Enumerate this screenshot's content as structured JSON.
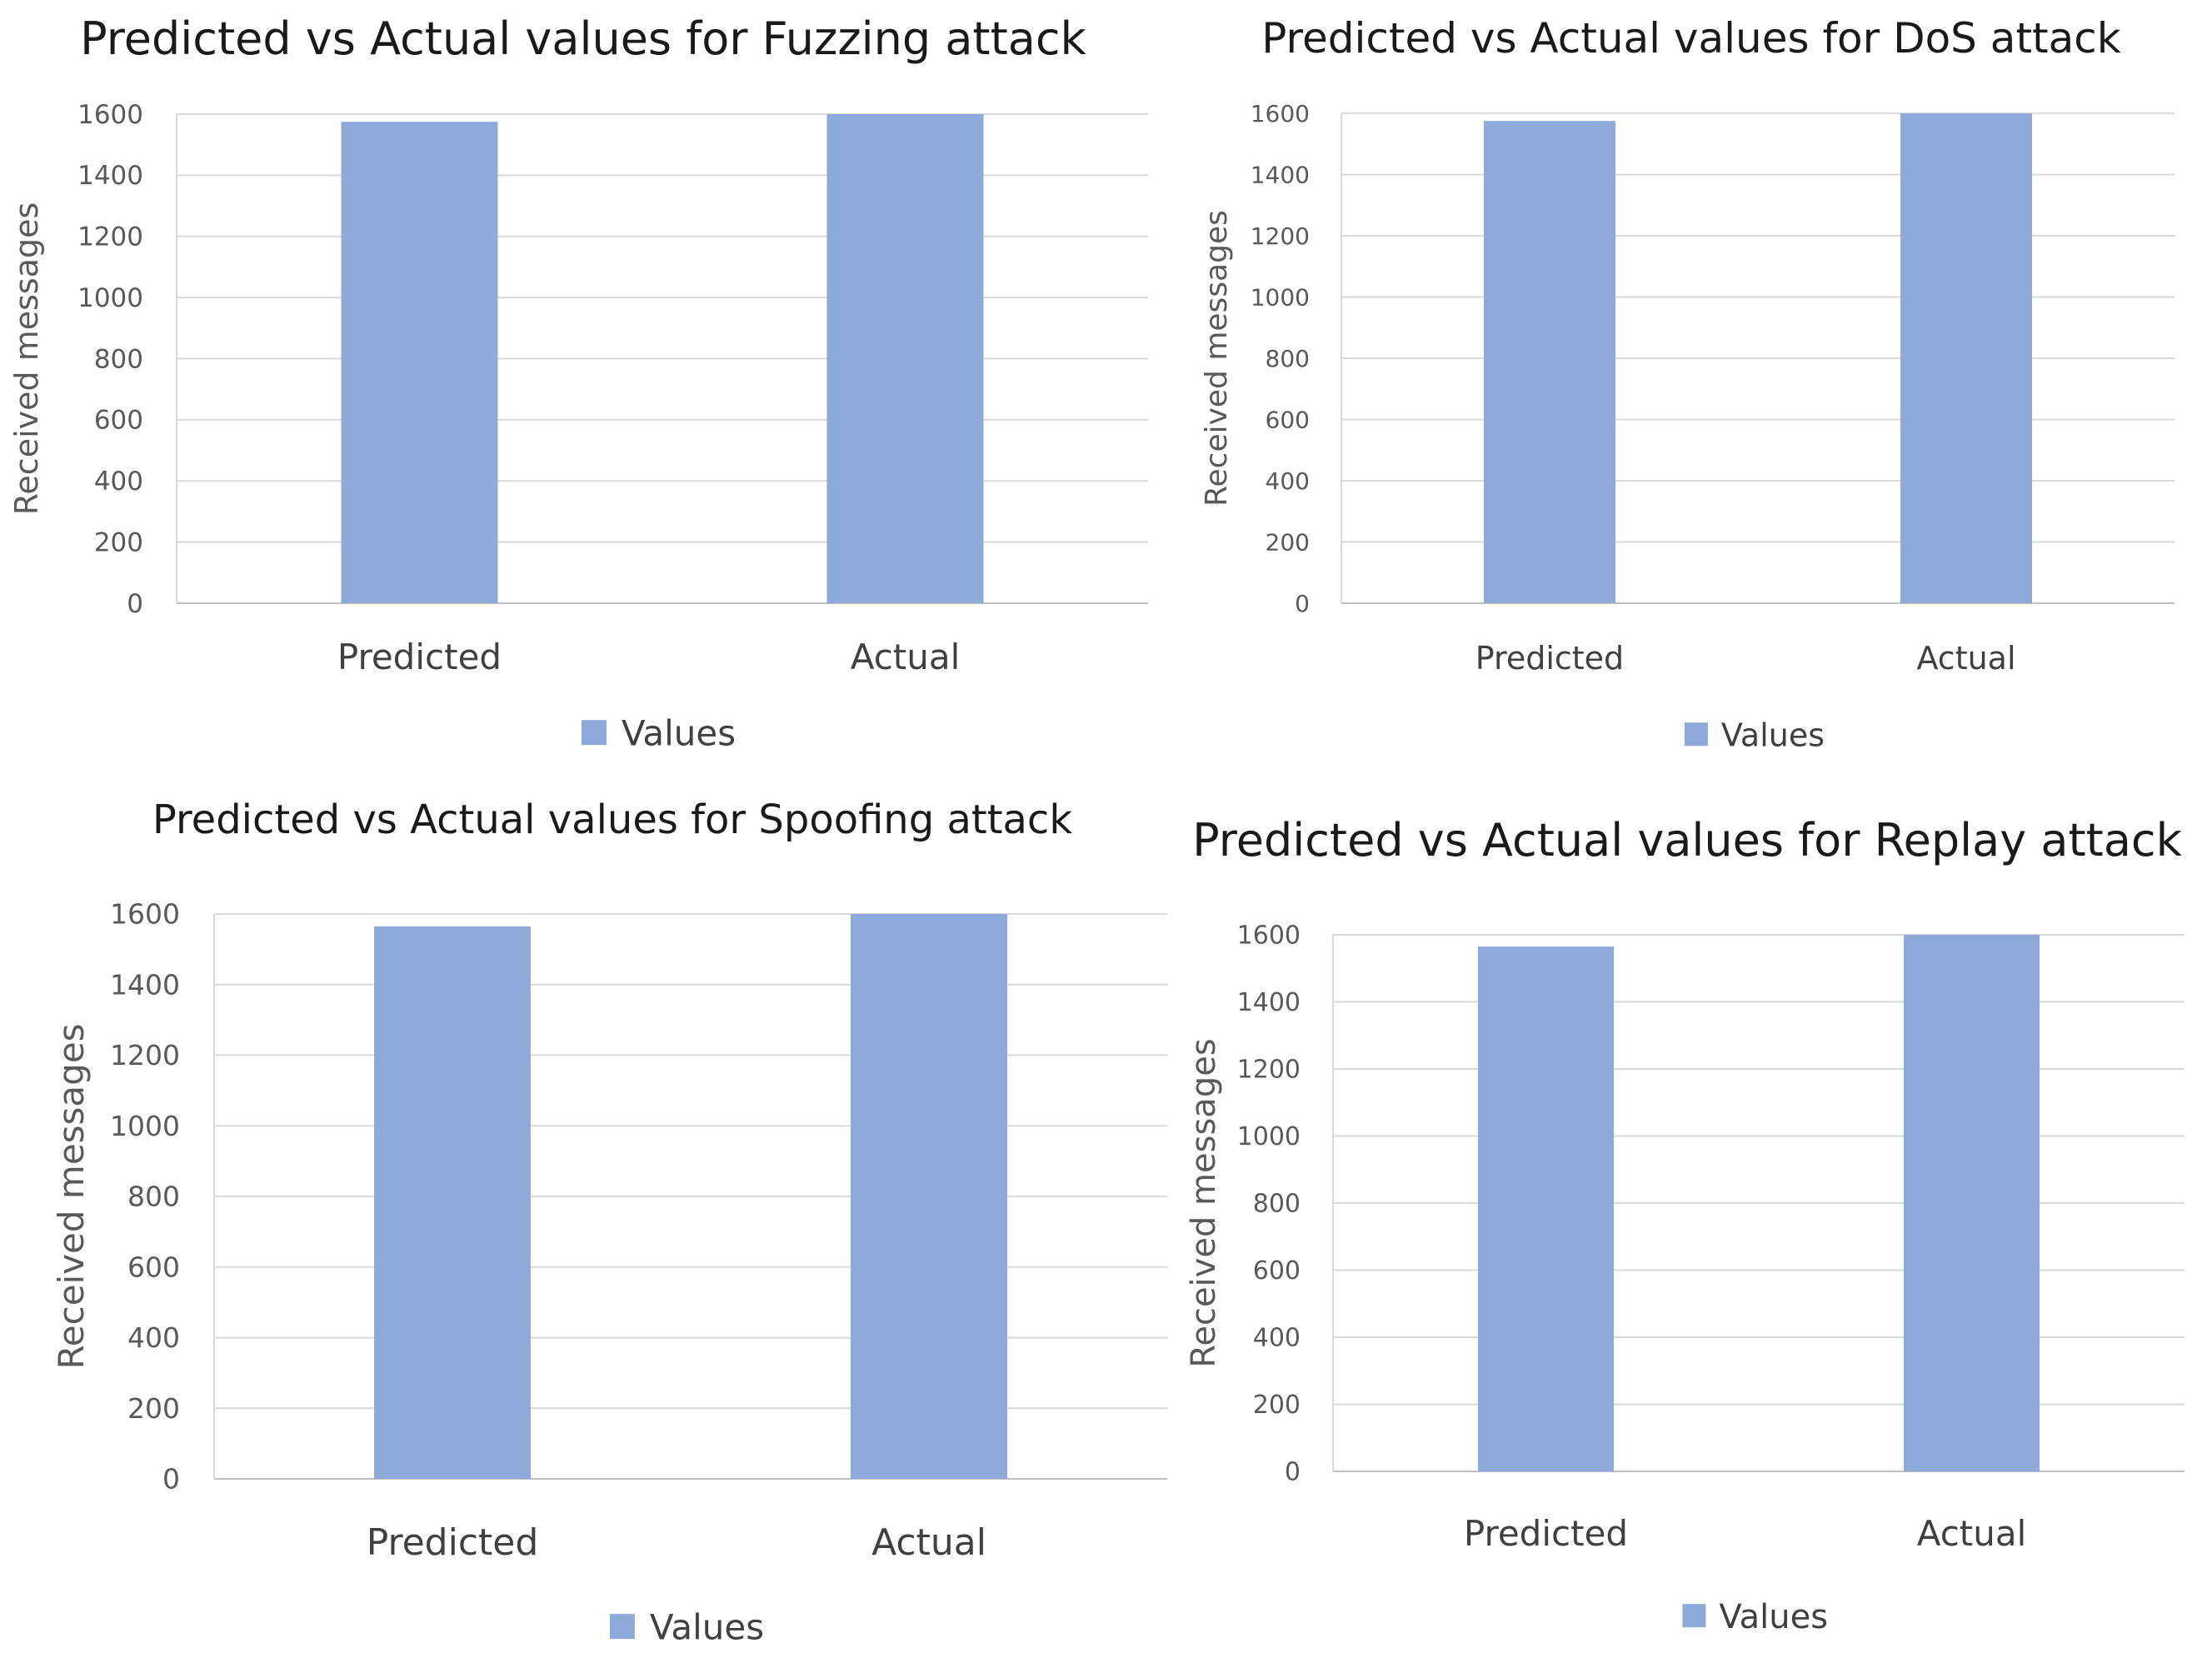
{
  "colors": {
    "bar": "#8eaadb",
    "grid": "#d9d9d9",
    "axis": "#bfbfbf"
  },
  "chart_data": [
    {
      "type": "bar",
      "title": "Predicted vs Actual values for Fuzzing attack",
      "categories": [
        "Predicted",
        "Actual"
      ],
      "series": [
        {
          "name": "Values",
          "values": [
            1575,
            1600
          ]
        }
      ],
      "xlabel": "",
      "ylabel": "Received messages",
      "ylim": [
        0,
        1600
      ],
      "yticks": [
        0,
        200,
        400,
        600,
        800,
        1000,
        1200,
        1400,
        1600
      ],
      "grid": true,
      "legend": "bottom"
    },
    {
      "type": "bar",
      "title": "Predicted vs Actual values for DoS attack",
      "categories": [
        "Predicted",
        "Actual"
      ],
      "series": [
        {
          "name": "Values",
          "values": [
            1575,
            1600
          ]
        }
      ],
      "xlabel": "",
      "ylabel": "Received messages",
      "ylim": [
        0,
        1600
      ],
      "yticks": [
        0,
        200,
        400,
        600,
        800,
        1000,
        1200,
        1400,
        1600
      ],
      "grid": true,
      "legend": "bottom"
    },
    {
      "type": "bar",
      "title": "Predicted vs Actual values for Spoofing attack",
      "categories": [
        "Predicted",
        "Actual"
      ],
      "series": [
        {
          "name": "Values",
          "values": [
            1565,
            1600
          ]
        }
      ],
      "xlabel": "",
      "ylabel": "Received messages",
      "ylim": [
        0,
        1600
      ],
      "yticks": [
        0,
        200,
        400,
        600,
        800,
        1000,
        1200,
        1400,
        1600
      ],
      "grid": true,
      "legend": "bottom"
    },
    {
      "type": "bar",
      "title": "Predicted vs Actual values for Replay attack",
      "categories": [
        "Predicted",
        "Actual"
      ],
      "series": [
        {
          "name": "Values",
          "values": [
            1565,
            1600
          ]
        }
      ],
      "xlabel": "",
      "ylabel": "Received messages",
      "ylim": [
        0,
        1600
      ],
      "yticks": [
        0,
        200,
        400,
        600,
        800,
        1000,
        1200,
        1400,
        1600
      ],
      "grid": true,
      "legend": "bottom"
    }
  ]
}
